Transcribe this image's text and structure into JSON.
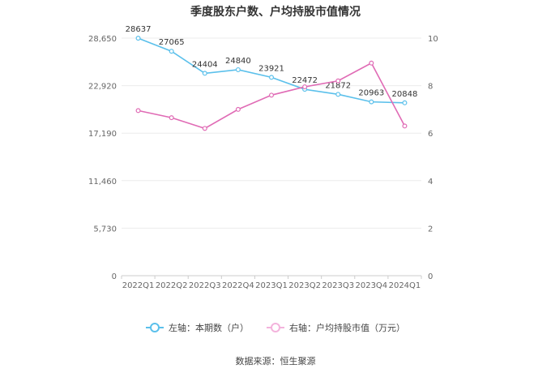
{
  "chart_data": {
    "type": "line",
    "title": "季度股东户数、户均持股市值情况",
    "categories": [
      "2022Q1",
      "2022Q2",
      "2022Q3",
      "2022Q4",
      "2023Q1",
      "2023Q2",
      "2023Q3",
      "2023Q4",
      "2024Q1"
    ],
    "series": [
      {
        "name": "左轴：本期数（户）",
        "axis": "left",
        "color": "#5bc0eb",
        "values": [
          28637,
          27065,
          24404,
          24840,
          23921,
          22472,
          21872,
          20963,
          20848
        ],
        "labels": [
          "28637",
          "27065",
          "24404",
          "24840",
          "23921",
          "22472",
          "21872",
          "20963",
          "20848"
        ]
      },
      {
        "name": "右轴：户均持股市值（万元）",
        "axis": "right",
        "color": "#e06bb5",
        "values": [
          6.95,
          6.65,
          6.2,
          7.0,
          7.6,
          7.95,
          8.2,
          8.95,
          6.3
        ]
      }
    ],
    "y_left": {
      "min": 0,
      "max": 28650,
      "ticks": [
        "0",
        "5,730",
        "11,460",
        "17,190",
        "22,920",
        "28,650"
      ],
      "tick_values": [
        0,
        5730,
        11460,
        17190,
        22920,
        28650
      ]
    },
    "y_right": {
      "min": 0,
      "max": 10,
      "ticks": [
        "0",
        "2",
        "4",
        "6",
        "8",
        "10"
      ],
      "tick_values": [
        0,
        2,
        4,
        6,
        8,
        10
      ]
    },
    "grid": true,
    "legend": "bottom"
  },
  "source": "数据来源：恒生聚源"
}
